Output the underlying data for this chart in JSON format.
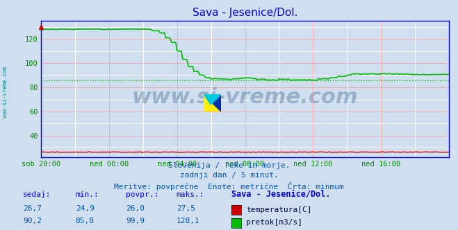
{
  "title": "Sava - Jesenice/Dol.",
  "title_color": "#0000cc",
  "bg_color": "#d0dff0",
  "plot_bg_color": "#d0dff0",
  "tick_color": "#008800",
  "x_tick_labels": [
    "sob 20:00",
    "ned 00:00",
    "ned 04:00",
    "ned 08:00",
    "ned 12:00",
    "ned 16:00"
  ],
  "x_tick_positions": [
    0,
    48,
    96,
    144,
    192,
    240
  ],
  "y_ticks": [
    40,
    60,
    80,
    100,
    120
  ],
  "ylim": [
    22,
    135
  ],
  "xlim": [
    0,
    288
  ],
  "watermark": "www.si-vreme.com",
  "subtitle1": "Slovenija / reke in morje.",
  "subtitle2": "zadnji dan / 5 minut.",
  "subtitle3": "Meritve: povprečne  Enote: metrične  Črta: minmum",
  "subtitle_color": "#0055aa",
  "table_header": [
    "sedaj:",
    "min.:",
    "povpr.:",
    "maks.:",
    "Sava - Jesenice/Dol."
  ],
  "table_row1": [
    "26,7",
    "24,9",
    "26,0",
    "27,5",
    "temperatura[C]"
  ],
  "table_row2": [
    "90,2",
    "85,8",
    "99,9",
    "128,1",
    "pretok[m3/s]"
  ],
  "table_color": "#0055aa",
  "table_header_color": "#0000cc",
  "legend_color1": "#cc0000",
  "legend_color2": "#00bb00",
  "left_label": "www.si-vreme.com",
  "left_label_color": "#008888",
  "n_points": 289,
  "flow_min": 85.8,
  "flow_max": 128.1,
  "temp_min": 24.9,
  "temp_max": 27.5,
  "spine_color": "#0000cc",
  "grid_pink": "#ffaaaa",
  "grid_white": "#ffffff"
}
